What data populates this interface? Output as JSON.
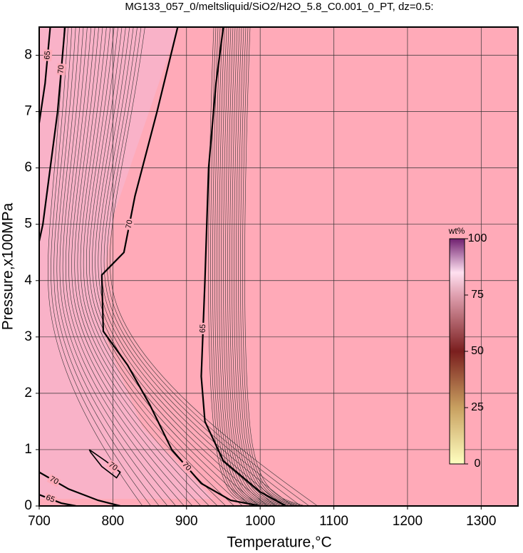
{
  "chart_data": {
    "type": "contour",
    "title": "MG133_057_0/meltsliquid/SiO2/H2O_5.8_C0.001_0_PT, dz=0.5:",
    "x_label": "Temperature,°C",
    "y_label": "Pressure,x100MPa",
    "xlim": [
      700,
      1350
    ],
    "ylim": [
      0,
      8.5
    ],
    "xticks": [
      700,
      800,
      900,
      1000,
      1100,
      1200,
      1300
    ],
    "yticks": [
      0,
      1,
      2,
      3,
      4,
      5,
      6,
      7,
      8
    ],
    "grid": true,
    "contours": [
      {
        "level": 70,
        "x": [
          888,
          860,
          830,
          815,
          800,
          785,
          787,
          820,
          850,
          880,
          920,
          960,
          1000
        ],
        "y": [
          8.5,
          7,
          5.5,
          4.5,
          4.3,
          4.1,
          3.1,
          2.5,
          1.8,
          1.0,
          0.4,
          0.1,
          0
        ]
      },
      {
        "level": 65,
        "x": [
          950,
          940,
          930,
          925,
          920,
          925,
          950,
          1000,
          1035
        ],
        "y": [
          8.5,
          7.5,
          6,
          4,
          2.3,
          1.5,
          0.8,
          0.25,
          0
        ]
      },
      {
        "level": 70,
        "x": [
          735,
          725,
          715,
          705,
          700
        ],
        "y": [
          8.5,
          7,
          6,
          5,
          4.7
        ]
      },
      {
        "level": 65,
        "x": [
          715,
          708,
          700
        ],
        "y": [
          8.5,
          7.5,
          6.8
        ]
      },
      {
        "level": 70,
        "x": [
          700,
          740,
          780,
          810
        ],
        "y": [
          0.6,
          0.3,
          0.1,
          0
        ]
      },
      {
        "level": 65,
        "x": [
          700,
          730,
          750
        ],
        "y": [
          0.2,
          0.05,
          0
        ]
      },
      {
        "level": 70,
        "x": [
          768,
          790,
          810,
          805,
          785,
          770,
          768
        ],
        "y": [
          1.0,
          0.8,
          0.6,
          0.5,
          0.7,
          0.95,
          1.0
        ]
      }
    ],
    "colorbar": {
      "label": "wt%",
      "lim": [
        0,
        100
      ],
      "ticks": [
        0,
        25,
        50,
        75,
        100
      ]
    }
  }
}
